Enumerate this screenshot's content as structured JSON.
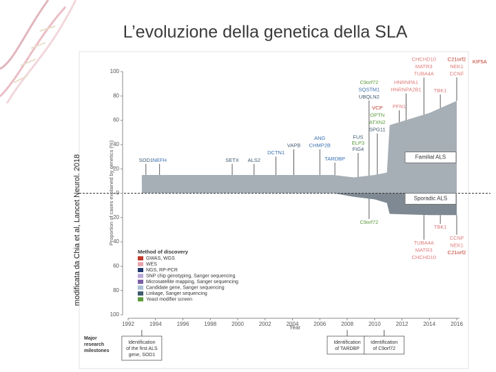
{
  "slide_title": "L’evoluzione della genetica della SLA",
  "side_note": "modificata da Chia et al, Lancet Neurol. 2018",
  "chart_data": {
    "type": "area",
    "ylabel": "Proportion of cases explained by genetics (%)",
    "xlabel": "Year",
    "x": [
      1993,
      2007,
      2008.5,
      2010,
      2010.9,
      2011.1,
      2014,
      2016
    ],
    "series": [
      {
        "name": "Familial ALS",
        "color": "#a7afb6",
        "values": [
          15,
          15,
          13,
          15,
          17,
          56,
          66,
          76
        ]
      },
      {
        "name": "Sporadic ALS",
        "color": "#7e8993",
        "values": [
          0,
          0,
          -3,
          -5,
          -8,
          -17,
          -18,
          -18
        ]
      }
    ],
    "xlim": [
      1992,
      2016
    ],
    "xticks": [
      1992,
      1994,
      1996,
      1998,
      2000,
      2002,
      2004,
      2006,
      2008,
      2010,
      2012,
      2014,
      2016
    ],
    "ylim": [
      -100,
      100
    ],
    "yticks": [
      100,
      80,
      60,
      40,
      20,
      0,
      {
        "value": -20,
        "label": "20"
      },
      {
        "value": -40,
        "label": "40"
      },
      {
        "value": -60,
        "label": "60"
      },
      {
        "value": -80,
        "label": "80"
      },
      {
        "value": -100,
        "label": "100"
      }
    ],
    "legend": {
      "title": "Method of discovery",
      "items": [
        {
          "name": "GWAS, WGS",
          "color": "#c0392b"
        },
        {
          "name": "WES",
          "color": "#e6a3ab"
        },
        {
          "name": "NGS, RP-PCR",
          "color": "#1f3a6e"
        },
        {
          "name": "SNP chip genotyping, Sanger sequencing",
          "color": "#b9aad8"
        },
        {
          "name": "Microsatellite mapping, Sanger sequencing",
          "color": "#7b5ea7"
        },
        {
          "name": "Candidate gene, Sanger sequencing",
          "color": "#a9bfd6"
        },
        {
          "name": "Linkage, Sanger sequencing",
          "color": "#3e5a70"
        },
        {
          "name": "Yeast modifier screen",
          "color": "#5a9a3c"
        }
      ]
    },
    "annotations": [
      {
        "text": "SOD1",
        "x": 1993.3,
        "y": 27,
        "color": "#3e5a70"
      },
      {
        "text": "NEFH",
        "x": 1994.3,
        "y": 27,
        "color": "#3a6fb0"
      },
      {
        "text": "SETX",
        "x": 1999.6,
        "y": 27,
        "color": "#3e5a70"
      },
      {
        "text": "ALS2",
        "x": 2001.2,
        "y": 27,
        "color": "#3e5a70"
      },
      {
        "text": "DCTN1",
        "x": 2002.8,
        "y": 33,
        "color": "#3a6fb0"
      },
      {
        "text": "VAPB",
        "x": 2004.1,
        "y": 39,
        "color": "#3e5a70"
      },
      {
        "text": "ANG",
        "x": 2006,
        "y": 45,
        "color": "#3a6fb0"
      },
      {
        "text": "CHMP2B",
        "x": 2006,
        "y": 39,
        "color": "#3a6fb0"
      },
      {
        "text": "TARDBP",
        "x": 2007.1,
        "y": 28,
        "color": "#3a6fb0"
      },
      {
        "text": "FUS",
        "x": 2008.8,
        "y": 46,
        "color": "#3e5a70"
      },
      {
        "text": "ELP3",
        "x": 2008.8,
        "y": 41,
        "color": "#5a9a3c"
      },
      {
        "text": "FIG4",
        "x": 2008.8,
        "y": 36,
        "color": "#3e5a70"
      },
      {
        "text": "C9orf72",
        "x": 2009.6,
        "y": 91,
        "color": "#5a9a3c"
      },
      {
        "text": "SQSTM1",
        "x": 2009.6,
        "y": 85,
        "color": "#3a6fb0"
      },
      {
        "text": "UBQLN2",
        "x": 2009.6,
        "y": 79,
        "color": "#3e5a70"
      },
      {
        "text": "VCP",
        "x": 2010.2,
        "y": 70,
        "color": "#c0392b"
      },
      {
        "text": "OPTN",
        "x": 2010.2,
        "y": 64,
        "color": "#5a9a3c"
      },
      {
        "text": "ATXN2",
        "x": 2010.2,
        "y": 58,
        "color": "#5a9a3c"
      },
      {
        "text": "SPG11",
        "x": 2010.2,
        "y": 52,
        "color": "#3e5a70"
      },
      {
        "text": "PFN1",
        "x": 2011.8,
        "y": 71,
        "color": "#e07a7a"
      },
      {
        "text": "HNRNPA1",
        "x": 2012.3,
        "y": 91,
        "color": "#e07a7a"
      },
      {
        "text": "HNRNPA2B1",
        "x": 2012.3,
        "y": 85,
        "color": "#e07a7a"
      },
      {
        "text": "CHCHD10",
        "x": 2013.6,
        "y": 110,
        "color": "#e07a7a"
      },
      {
        "text": "MATR3",
        "x": 2013.6,
        "y": 104,
        "color": "#e07a7a"
      },
      {
        "text": "TUBA4A",
        "x": 2013.6,
        "y": 98,
        "color": "#e07a7a"
      },
      {
        "text": "TBK1",
        "x": 2014.8,
        "y": 84,
        "color": "#e07a7a"
      },
      {
        "text": "C21orf2",
        "x": 2016,
        "y": 110,
        "color": "#c0392b"
      },
      {
        "text": "NEK1",
        "x": 2016,
        "y": 104,
        "color": "#e07a7a"
      },
      {
        "text": "CCNF",
        "x": 2016,
        "y": 98,
        "color": "#e07a7a"
      },
      {
        "text": "KIF5A",
        "x": 2018.2,
        "y": 108,
        "color": "#c0392b"
      },
      {
        "text": "C9orf72",
        "x": 2009.6,
        "y": -24,
        "color": "#5a9a3c"
      },
      {
        "text": "TBK1",
        "x": 2014.8,
        "y": -28,
        "color": "#e07a7a"
      },
      {
        "text": "TUBA4A",
        "x": 2013.6,
        "y": -41,
        "color": "#e07a7a"
      },
      {
        "text": "MATR3",
        "x": 2013.6,
        "y": -47,
        "color": "#e07a7a"
      },
      {
        "text": "CHCHD10",
        "x": 2013.6,
        "y": -53,
        "color": "#e07a7a"
      },
      {
        "text": "CCNF",
        "x": 2016,
        "y": -37,
        "color": "#e07a7a"
      },
      {
        "text": "NEK1",
        "x": 2016,
        "y": -43,
        "color": "#e07a7a"
      },
      {
        "text": "C21orf2",
        "x": 2016,
        "y": -49,
        "color": "#c0392b"
      }
    ],
    "milestones": {
      "title": [
        "Major",
        "research",
        "milestones"
      ],
      "items": [
        {
          "lines": [
            "Identification",
            "of the first ALS",
            "gene, SOD1"
          ],
          "x": 1993
        },
        {
          "lines": [
            "Identification",
            "of TARDBP"
          ],
          "x": 2008
        },
        {
          "lines": [
            "Identification",
            "of C9orf72"
          ],
          "x": 2010.7
        }
      ]
    }
  }
}
